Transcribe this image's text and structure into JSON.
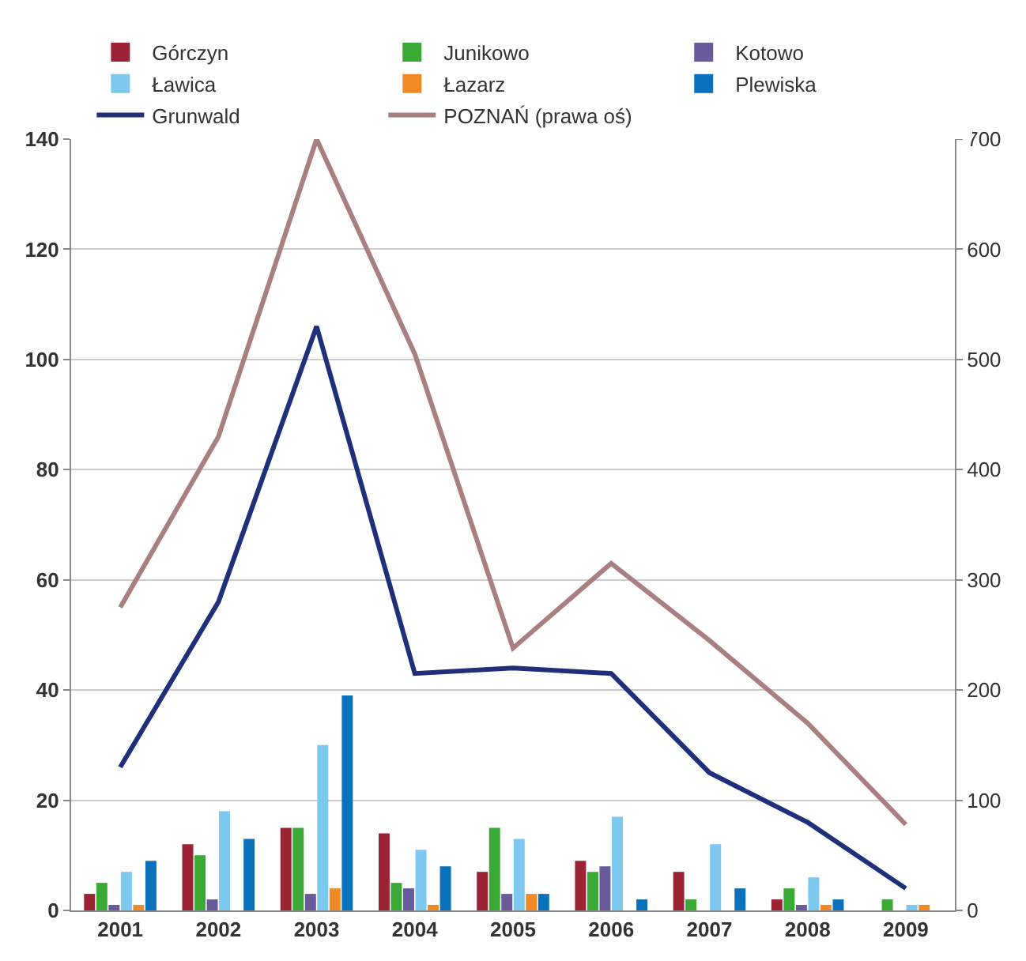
{
  "chart_data": {
    "type": "bar",
    "categories": [
      "2001",
      "2002",
      "2003",
      "2004",
      "2005",
      "2006",
      "2007",
      "2008",
      "2009"
    ],
    "series": [
      {
        "name": "Górczyn",
        "color": "#9b2335",
        "values": [
          3,
          12,
          15,
          14,
          7,
          9,
          7,
          2,
          0
        ]
      },
      {
        "name": "Junikowo",
        "color": "#3aa935",
        "values": [
          5,
          10,
          15,
          5,
          15,
          7,
          2,
          4,
          2
        ]
      },
      {
        "name": "Kotowo",
        "color": "#6a5a9c",
        "values": [
          1,
          2,
          3,
          4,
          3,
          8,
          0,
          1,
          0
        ]
      },
      {
        "name": "Ławica",
        "color": "#7cc8ef",
        "values": [
          7,
          18,
          30,
          11,
          13,
          17,
          12,
          6,
          1
        ]
      },
      {
        "name": "Łazarz",
        "color": "#ef8a24",
        "values": [
          1,
          0,
          4,
          1,
          3,
          0,
          0,
          1,
          1
        ]
      },
      {
        "name": "Plewiska",
        "color": "#0a72bc",
        "values": [
          9,
          13,
          39,
          8,
          3,
          2,
          4,
          2,
          0
        ]
      },
      {
        "name": "Grunwald",
        "type": "line",
        "color": "#1f2f7a",
        "values": [
          26,
          56,
          106,
          43,
          44,
          43,
          25,
          16,
          4
        ]
      },
      {
        "name": "POZNAŃ (prawa oś)",
        "type": "line",
        "axis": "y2",
        "color": "#a98080",
        "values": [
          275,
          430,
          700,
          505,
          238,
          315,
          245,
          170,
          78
        ]
      }
    ],
    "ylim": [
      0,
      140
    ],
    "yticks": [
      0,
      20,
      40,
      60,
      80,
      100,
      120,
      140
    ],
    "y2lim": [
      0,
      700
    ],
    "y2ticks": [
      0,
      100,
      200,
      300,
      400,
      500,
      600,
      700
    ],
    "grid": "y",
    "legend": "top",
    "marker": "none",
    "line_style": "solid"
  }
}
